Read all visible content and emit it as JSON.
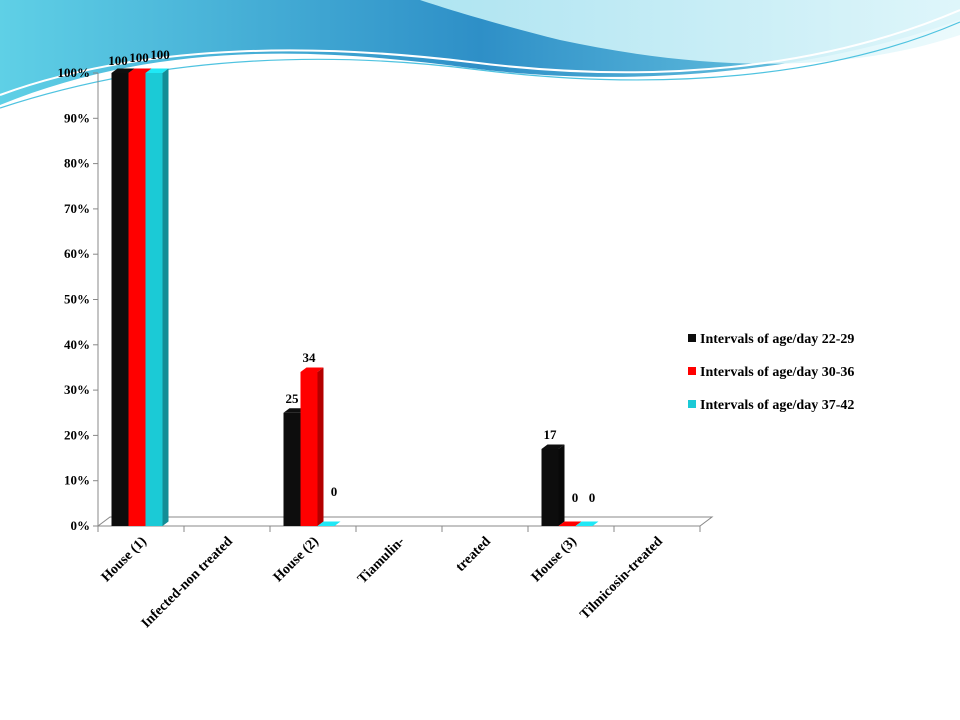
{
  "chart_data": {
    "type": "bar",
    "categories": [
      "House (1)",
      "Infected-non treated",
      "House (2)",
      "Tiamulin-",
      "treated",
      "House (3)",
      "Tilmicosin-treated"
    ],
    "series": [
      {
        "name": "Intervals of age/day  22-29",
        "color": "#0d0d0d",
        "values": [
          100,
          null,
          25,
          null,
          null,
          17,
          null
        ]
      },
      {
        "name": "Intervals of age/day  30-36",
        "color": "#ff0000",
        "values": [
          100,
          null,
          34,
          null,
          null,
          0,
          null
        ]
      },
      {
        "name": "Intervals of age/day  37-42",
        "color": "#1bcad6",
        "values": [
          100,
          null,
          0,
          null,
          null,
          0,
          null
        ]
      }
    ],
    "y_ticks": [
      "0%",
      "10%",
      "20%",
      "30%",
      "40%",
      "50%",
      "60%",
      "70%",
      "80%",
      "90%",
      "100%"
    ],
    "ylim": [
      0,
      100
    ],
    "grid": false,
    "legend_position": "right",
    "title": "",
    "xlabel": "",
    "ylabel": ""
  }
}
